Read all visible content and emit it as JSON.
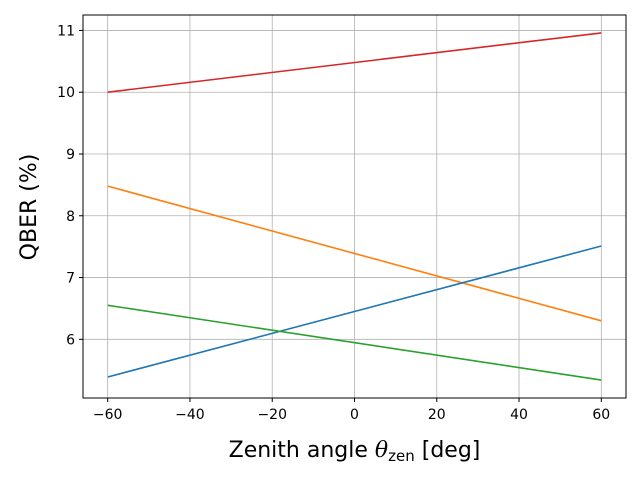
{
  "chart_data": {
    "type": "line",
    "title": "",
    "xlabel_main": "Zenith angle ",
    "xlabel_theta": "θ",
    "xlabel_sub": "zen",
    "xlabel_unit": " [deg]",
    "ylabel": "QBER (%)",
    "xlim": [
      -66,
      66
    ],
    "ylim": [
      5.05,
      11.25
    ],
    "xticks": [
      -60,
      -40,
      -20,
      0,
      20,
      40,
      60
    ],
    "xtick_labels": [
      "−60",
      "−40",
      "−20",
      "0",
      "20",
      "40",
      "60"
    ],
    "yticks": [
      6,
      7,
      8,
      9,
      10,
      11
    ],
    "ytick_labels": [
      "6",
      "7",
      "8",
      "9",
      "10",
      "11"
    ],
    "grid": true,
    "x": [
      -60,
      60
    ],
    "series": [
      {
        "color": "#d62728",
        "values": [
          10.0,
          10.96
        ]
      },
      {
        "color": "#ff7f0e",
        "values": [
          8.48,
          6.3
        ]
      },
      {
        "color": "#1f77b4",
        "values": [
          5.39,
          7.51
        ]
      },
      {
        "color": "#2ca02c",
        "values": [
          6.55,
          5.34
        ]
      }
    ]
  }
}
